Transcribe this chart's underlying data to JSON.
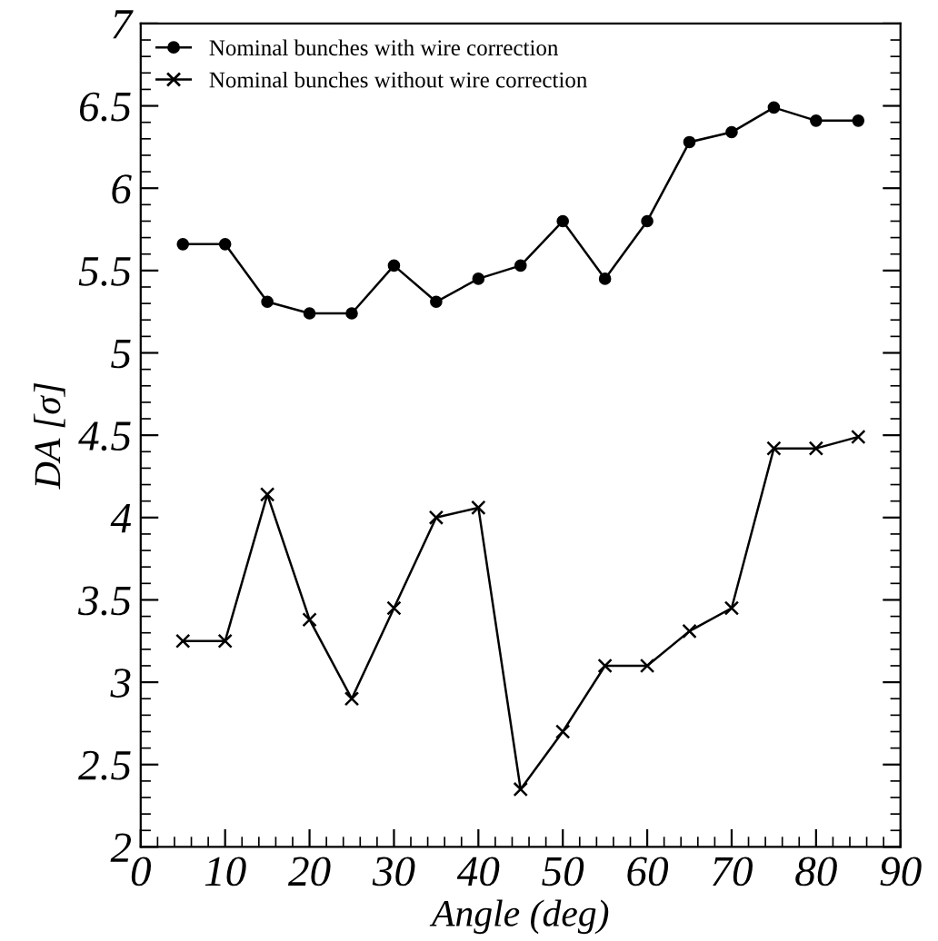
{
  "chart_data": {
    "type": "line",
    "xlabel": "Angle (deg)",
    "ylabel": "DA [σ]",
    "x": [
      5,
      10,
      15,
      20,
      25,
      30,
      35,
      40,
      45,
      50,
      55,
      60,
      65,
      70,
      75,
      80,
      85
    ],
    "series": [
      {
        "name": "Nominal bunches with wire correction",
        "color": "#000000",
        "marker": "circle",
        "values": [
          5.66,
          5.66,
          5.31,
          5.24,
          5.24,
          5.53,
          5.31,
          5.45,
          5.53,
          5.8,
          5.45,
          5.8,
          6.28,
          6.34,
          6.49,
          6.41,
          6.41
        ]
      },
      {
        "name": "Nominal bunches without wire correction",
        "color": "#000000",
        "marker": "cross",
        "values": [
          3.25,
          3.25,
          4.14,
          3.38,
          2.9,
          3.45,
          4.0,
          4.06,
          2.35,
          2.7,
          3.1,
          3.1,
          3.31,
          3.45,
          4.42,
          4.42,
          4.49
        ]
      }
    ],
    "xlim": [
      0,
      90
    ],
    "xticks": [
      0,
      10,
      20,
      30,
      40,
      50,
      60,
      70,
      80,
      90
    ],
    "ylim": [
      2,
      7
    ],
    "yticks": [
      2,
      2.5,
      3,
      3.5,
      4,
      4.5,
      5,
      5.5,
      6,
      6.5,
      7
    ],
    "grid": false,
    "legend": "top left",
    "line_style": "solid"
  }
}
